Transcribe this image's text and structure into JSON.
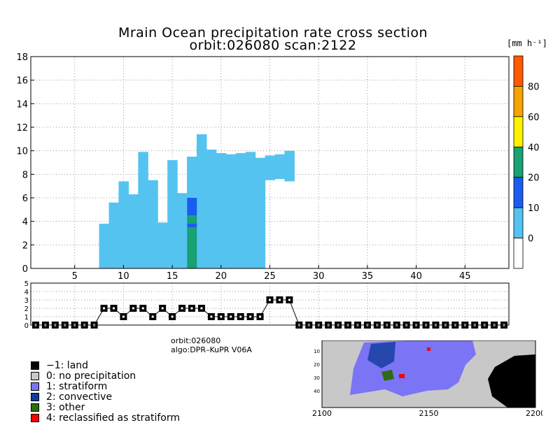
{
  "title_line1": "Mrain Ocean precipitation rate cross section",
  "title_line2": "orbit:026080     scan:2122",
  "colorbar": {
    "unit": "[mm h⁻¹]",
    "ticks": [
      "0",
      "10",
      "20",
      "40",
      "60",
      "80"
    ],
    "colors": [
      "#ffffff",
      "#55c3f0",
      "#1a5cf0",
      "#17a175",
      "#fff200",
      "#f5a400",
      "#ff5a00"
    ]
  },
  "info": {
    "orbit": "orbit:026080",
    "algo": "algo:DPR–KuPR V06A"
  },
  "legend": [
    {
      "label": "−1: land",
      "color": "#000000"
    },
    {
      "label": "0: no precipitation",
      "color": "#c8c8c8"
    },
    {
      "label": "1: stratiform",
      "color": "#7b74f5"
    },
    {
      "label": "2: convective",
      "color": "#103c9c"
    },
    {
      "label": "3: other",
      "color": "#2e6b12"
    },
    {
      "label": "4: reclassified as stratiform",
      "color": "#ff0000"
    }
  ],
  "map": {
    "x_ticks": [
      "2100",
      "2150",
      "2200"
    ],
    "y_ticks": [
      "10",
      "20",
      "30",
      "40"
    ]
  },
  "chart_data": [
    {
      "type": "heatmap",
      "title": "Mrain Ocean precipitation rate cross section",
      "xlim": [
        1,
        49
      ],
      "ylim": [
        0,
        18
      ],
      "x_ticks": [
        5,
        10,
        15,
        20,
        25,
        30,
        35,
        40,
        45
      ],
      "y_ticks": [
        0,
        2,
        4,
        6,
        8,
        10,
        12,
        14,
        16,
        18
      ],
      "columns": [
        {
          "x": 8,
          "top": 3.8
        },
        {
          "x": 9,
          "top": 5.6
        },
        {
          "x": 10,
          "top": 7.4
        },
        {
          "x": 11,
          "top": 6.3
        },
        {
          "x": 12,
          "top": 9.9
        },
        {
          "x": 13,
          "top": 7.5
        },
        {
          "x": 14,
          "top": 3.9
        },
        {
          "x": 15,
          "top": 9.2
        },
        {
          "x": 16,
          "top": 6.4
        },
        {
          "x": 17,
          "top": 9.5
        },
        {
          "x": 18,
          "top": 11.4
        },
        {
          "x": 19,
          "top": 10.1
        },
        {
          "x": 20,
          "top": 9.8
        },
        {
          "x": 21,
          "top": 9.7
        },
        {
          "x": 22,
          "top": 9.8
        },
        {
          "x": 23,
          "top": 9.9
        },
        {
          "x": 24,
          "top": 9.4
        }
      ],
      "floating_blocks": [
        {
          "x": 25,
          "bottom": 7.5,
          "top": 9.6
        },
        {
          "x": 26,
          "bottom": 7.6,
          "top": 9.7
        },
        {
          "x": 27,
          "bottom": 7.4,
          "top": 10.0
        }
      ],
      "intense_column": {
        "x": 17,
        "segments": [
          {
            "bottom": 0.0,
            "top": 3.5,
            "class": 3
          },
          {
            "bottom": 3.5,
            "top": 3.8,
            "class": 2
          },
          {
            "bottom": 3.8,
            "top": 4.5,
            "class": 3
          },
          {
            "bottom": 4.5,
            "top": 6.0,
            "class": 2
          }
        ]
      }
    },
    {
      "type": "scatter",
      "xlim": [
        1,
        49
      ],
      "ylim": [
        0,
        5
      ],
      "y_ticks": [
        0,
        1,
        2,
        3,
        4,
        5
      ],
      "x": [
        1,
        2,
        3,
        4,
        5,
        6,
        7,
        8,
        9,
        10,
        11,
        12,
        13,
        14,
        15,
        16,
        17,
        18,
        19,
        20,
        21,
        22,
        23,
        24,
        25,
        26,
        27,
        28,
        29,
        30,
        31,
        32,
        33,
        34,
        35,
        36,
        37,
        38,
        39,
        40,
        41,
        42,
        43,
        44,
        45,
        46,
        47,
        48,
        49
      ],
      "y": [
        0,
        0,
        0,
        0,
        0,
        0,
        0,
        2,
        2,
        1,
        2,
        2,
        1,
        2,
        1,
        2,
        2,
        2,
        1,
        1,
        1,
        1,
        1,
        1,
        3,
        3,
        3,
        0,
        0,
        0,
        0,
        0,
        0,
        0,
        0,
        0,
        0,
        0,
        0,
        0,
        0,
        0,
        0,
        0,
        0,
        0,
        0,
        0,
        0
      ]
    }
  ]
}
